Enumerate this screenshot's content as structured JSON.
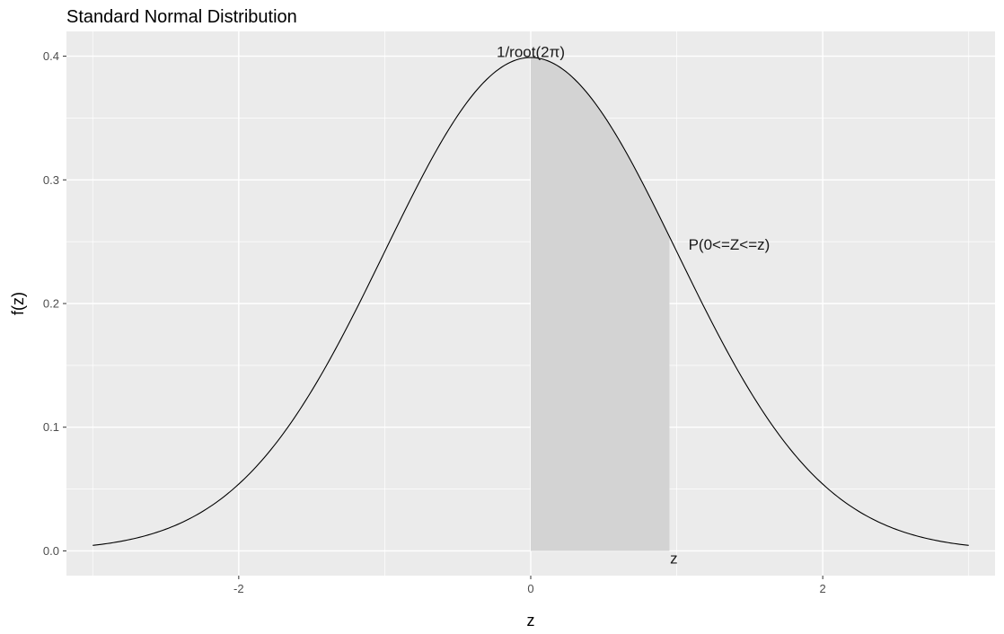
{
  "chart_data": {
    "type": "area",
    "title": "Standard Normal Distribution",
    "xlabel": "z",
    "ylabel": "f(z)",
    "xlim": [
      -3.18,
      3.18
    ],
    "ylim": [
      -0.02,
      0.42
    ],
    "x_ticks": [
      -2,
      0,
      2
    ],
    "x_tick_labels": [
      "-2",
      "0",
      "2"
    ],
    "y_ticks": [
      0.0,
      0.1,
      0.2,
      0.3,
      0.4
    ],
    "y_tick_labels": [
      "0.0",
      "0.1",
      "0.2",
      "0.3",
      "0.4"
    ],
    "grid": true,
    "legend": "none",
    "curve": {
      "x": [
        -3.0,
        -2.8,
        -2.6,
        -2.4,
        -2.2,
        -2.0,
        -1.8,
        -1.6,
        -1.4,
        -1.2,
        -1.0,
        -0.8,
        -0.6,
        -0.4,
        -0.2,
        0.0,
        0.2,
        0.4,
        0.6,
        0.8,
        1.0,
        1.2,
        1.4,
        1.6,
        1.8,
        2.0,
        2.2,
        2.4,
        2.6,
        2.8,
        3.0
      ],
      "y": [
        0.0044,
        0.0079,
        0.0136,
        0.0224,
        0.0355,
        0.054,
        0.079,
        0.1109,
        0.1497,
        0.1942,
        0.242,
        0.2897,
        0.3332,
        0.3683,
        0.391,
        0.3989,
        0.391,
        0.3683,
        0.3332,
        0.2897,
        0.242,
        0.1942,
        0.1497,
        0.1109,
        0.079,
        0.054,
        0.0355,
        0.0224,
        0.0136,
        0.0079,
        0.0044
      ]
    },
    "shaded_region": {
      "x_from": 0.0,
      "x_to": 0.95,
      "fill": "#d3d3d3"
    },
    "annotations": [
      {
        "text": "1/root(2π)",
        "x": 0.0,
        "y": 0.4035
      },
      {
        "text": "P(0<=Z<=z)",
        "x": 1.08,
        "y": 0.248
      },
      {
        "text": "z",
        "x": 0.98,
        "y": -0.006
      }
    ],
    "colors": {
      "panel": "#ebebeb",
      "grid": "#ffffff",
      "curve": "#000000",
      "shade": "#d3d3d3"
    }
  }
}
